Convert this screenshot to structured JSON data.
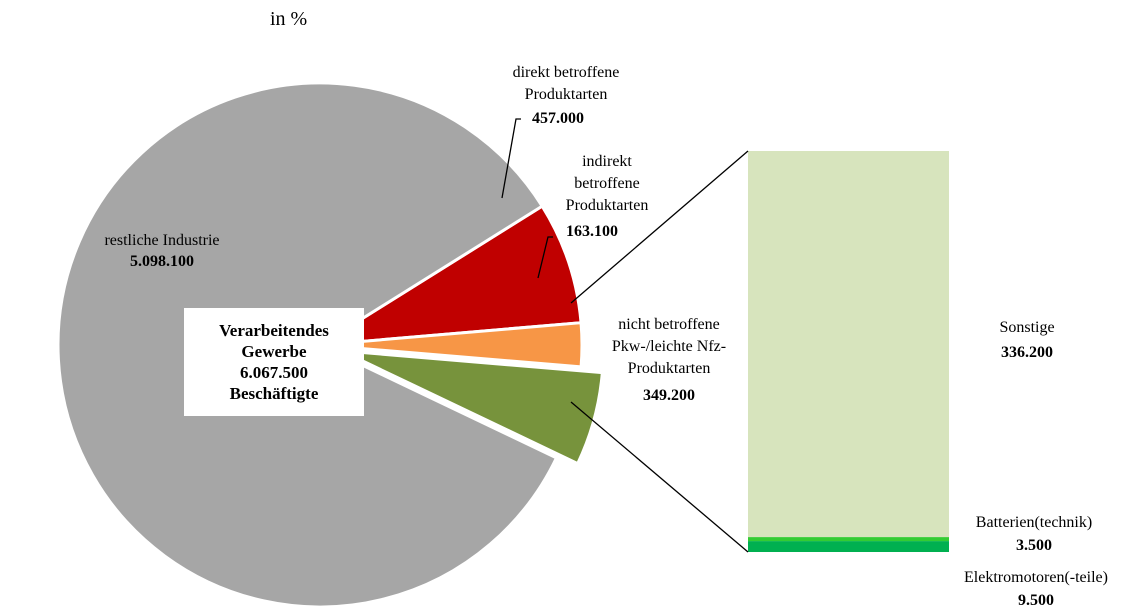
{
  "subtitle": "in %",
  "center_label": [
    "Verarbeitendes",
    "Gewerbe",
    "6.067.500",
    "Beschäftigte"
  ],
  "chart_data": [
    {
      "type": "pie",
      "total": 6067500,
      "slices": [
        {
          "key": "direkt",
          "label_lines": [
            "direkt betroffene",
            "Produktarten"
          ],
          "value_label": "457.000",
          "value": 457000,
          "color": "#C00000"
        },
        {
          "key": "indirekt",
          "label_lines": [
            "indirekt",
            "betroffene",
            "Produktarten"
          ],
          "value_label": "163.100",
          "value": 163100,
          "color": "#F79646"
        },
        {
          "key": "nicht",
          "label_lines": [
            "nicht betroffene",
            "Pkw-/leichte Nfz-",
            "Produktarten"
          ],
          "value_label": "349.200",
          "value": 349200,
          "color": "#77933C"
        },
        {
          "key": "rest",
          "label_lines": [
            "restliche Industrie"
          ],
          "value_label": "5.098.100",
          "value": 5098100,
          "color": "#A6A6A6"
        }
      ]
    },
    {
      "type": "bar",
      "stacked": true,
      "segments": [
        {
          "key": "elektro",
          "label_lines": [
            "Elektromotoren(-teile)"
          ],
          "value_label": "9.500",
          "value": 9500,
          "color": "#00B050"
        },
        {
          "key": "batterien",
          "label_lines": [
            "Batterien(technik)"
          ],
          "value_label": "3.500",
          "value": 3500,
          "color": "#33CC33"
        },
        {
          "key": "sonstige",
          "label_lines": [
            "Sonstige"
          ],
          "value_label": "336.200",
          "value": 336200,
          "color": "#D7E4BD"
        }
      ]
    }
  ]
}
